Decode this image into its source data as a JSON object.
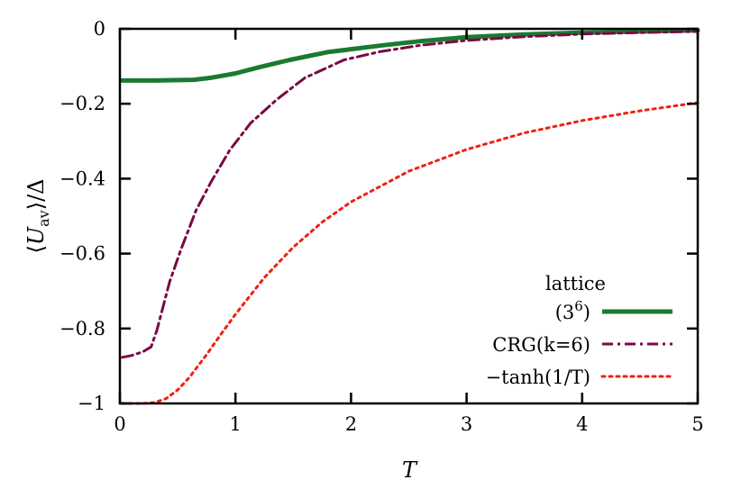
{
  "chart_data": {
    "type": "line",
    "title": "",
    "xlabel": "T",
    "ylabel": "⟨U_av⟩/Δ",
    "xlim": [
      0,
      5
    ],
    "ylim": [
      -1,
      0
    ],
    "xticks": [
      "0",
      "1",
      "2",
      "3",
      "4",
      "5"
    ],
    "yticks": [
      "0",
      "−0.2",
      "−0.4",
      "−0.6",
      "−0.8",
      "−1"
    ],
    "grid": false,
    "legend_position": "bottom-right",
    "series": [
      {
        "name": "lattice (3^6)",
        "legend_line1": "lattice",
        "legend_line2": "(3",
        "legend_sup": "6",
        "legend_close": ")",
        "color": "#1a7a30",
        "style": "solid",
        "x": [
          0.02,
          0.3,
          0.64,
          0.8,
          1.0,
          1.2,
          1.47,
          1.8,
          2.25,
          2.6,
          3.0,
          3.5,
          4.0,
          4.5,
          5.0
        ],
        "y": [
          -0.138,
          -0.138,
          -0.136,
          -0.13,
          -0.119,
          -0.103,
          -0.083,
          -0.062,
          -0.045,
          -0.033,
          -0.022,
          -0.015,
          -0.01,
          -0.007,
          -0.004
        ]
      },
      {
        "name": "CRG(k=6)",
        "legend_label": "CRG(k=6)",
        "color": "#7a0a45",
        "style": "dashdot",
        "x": [
          0.02,
          0.1,
          0.2,
          0.27,
          0.32,
          0.43,
          0.53,
          0.66,
          0.79,
          0.95,
          1.13,
          1.36,
          1.6,
          1.94,
          2.25,
          2.6,
          3.0,
          3.5,
          4.0,
          4.5,
          5.0
        ],
        "y": [
          -0.877,
          -0.872,
          -0.862,
          -0.849,
          -0.805,
          -0.676,
          -0.588,
          -0.484,
          -0.408,
          -0.324,
          -0.252,
          -0.188,
          -0.131,
          -0.083,
          -0.061,
          -0.044,
          -0.031,
          -0.021,
          -0.014,
          -0.01,
          -0.007
        ]
      },
      {
        "name": "−tanh(1/T)",
        "legend_label": "−tanh(1/T)",
        "color": "#f02010",
        "style": "dotted",
        "x": [
          0.02,
          0.2,
          0.3,
          0.4,
          0.5,
          0.6,
          0.75,
          0.875,
          1.0,
          1.25,
          1.5,
          1.75,
          2.0,
          2.5,
          3.0,
          3.5,
          4.0,
          4.5,
          5.0
        ],
        "y": [
          -1.0,
          -1.0,
          -0.9975,
          -0.987,
          -0.964,
          -0.931,
          -0.87,
          -0.815,
          -0.762,
          -0.664,
          -0.583,
          -0.516,
          -0.462,
          -0.38,
          -0.322,
          -0.278,
          -0.245,
          -0.219,
          -0.197
        ]
      }
    ]
  }
}
